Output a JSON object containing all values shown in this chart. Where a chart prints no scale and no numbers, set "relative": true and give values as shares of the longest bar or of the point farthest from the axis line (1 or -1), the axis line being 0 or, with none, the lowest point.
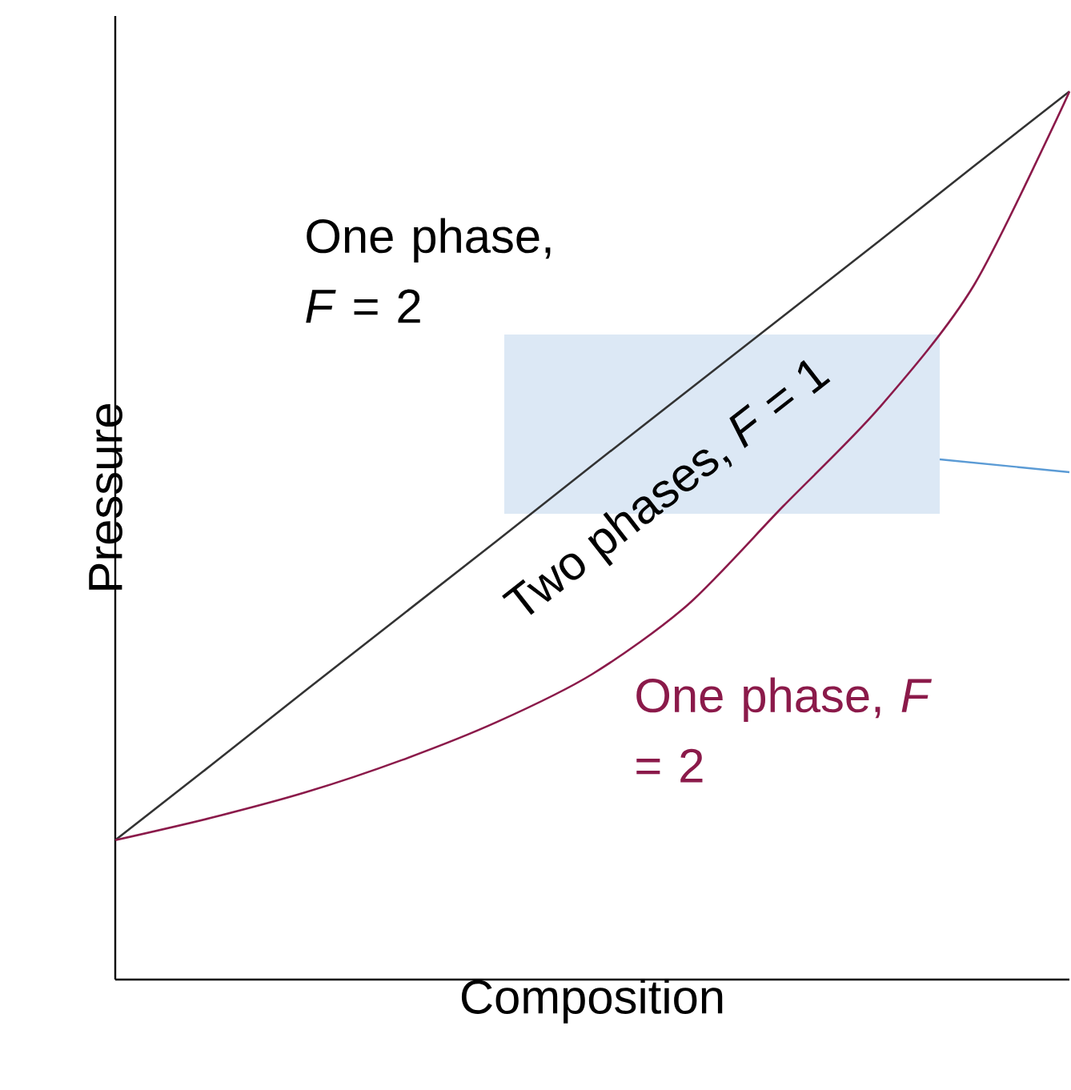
{
  "chart_data": {
    "type": "line",
    "relative": true,
    "xlabel": "Composition",
    "ylabel": "Pressure",
    "categories": [
      null,
      null,
      null,
      null,
      null,
      null,
      null,
      null,
      null,
      null,
      null
    ],
    "series": [
      {
        "color": "#333333",
        "values": [
          0.157,
          0.241,
          0.326,
          0.41,
          0.494,
          0.579,
          0.663,
          0.747,
          0.831,
          0.916,
          1.0
        ]
      },
      {
        "color": "#8b1a4a",
        "values": [
          0.157,
          0.182,
          0.211,
          0.247,
          0.29,
          0.344,
          0.422,
          0.533,
          0.643,
          0.782,
          1.0
        ]
      }
    ],
    "annotations": [
      "One phase, *F* = 2",
      "Two phases, *F* = 1",
      "One phase, *F* = 2"
    ],
    "marker": "none",
    "line_style": "solid"
  }
}
